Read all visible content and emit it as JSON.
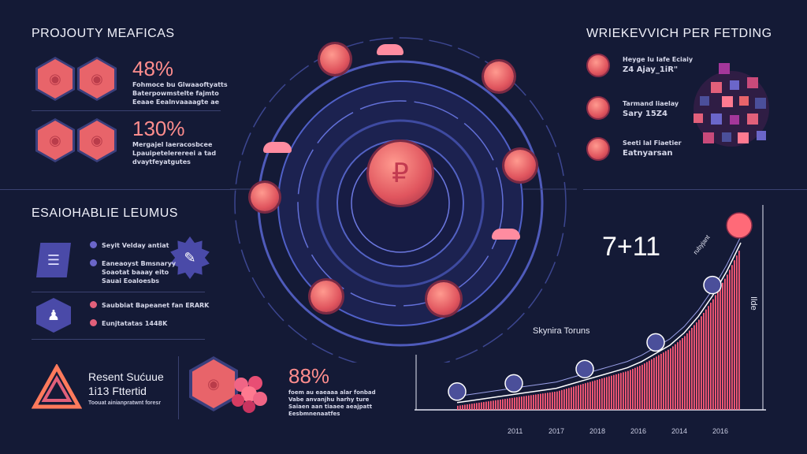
{
  "left_top": {
    "title": "PROJOUTY MEAFICAS",
    "stat1": {
      "value": "48%",
      "text": [
        "Fohmoce bu Glwaaoftyatts",
        "Baterpowmstelte fajmto",
        "Eeaae Eealnvaaaagte ae"
      ]
    },
    "stat2": {
      "value": "130%",
      "text": [
        "Mergajel laeracosbcee",
        "Lpauipetelerereei a tad",
        "dvaytfeyatgutes"
      ]
    }
  },
  "left_mid": {
    "title": "ESAIOHABLIE LEUMUS",
    "items": [
      "Seyit Velday antiat",
      "Eaneaoyst Bmsnaryy",
      "Soaotat baaay eito",
      "Sauai Eoaloesbs",
      "Saubbiat Bapeanet fan ERARK",
      "Eunjtatatas 1448K"
    ]
  },
  "left_bottom": {
    "title": "Resent Sućuue",
    "subtitle": "1i13 Fttertid",
    "text": "Toouat ainianpratwnt foresr"
  },
  "center_bottom": {
    "value": "88%",
    "text": [
      "foem au eaeaaa alar fonbad",
      "Vabe anvanjhu harhy ture",
      "Saiaen aan tiaaee aeajpatt",
      "Eesbmnenaatfes"
    ]
  },
  "right_top": {
    "title": "WRIEKEVVICH PER FETDING",
    "items": [
      {
        "l1": "Heyge Iu Iafe Eciaiy",
        "l2": "Z4 Ajay_1iR\""
      },
      {
        "l1": "Tarmand liaelay",
        "l2": "Sary 15Z4"
      },
      {
        "l1": "Seeti lal Fiaetier",
        "l2": "Eatnyarsan"
      }
    ]
  },
  "chart_data": {
    "type": "area",
    "title": "",
    "big_label": "7+11",
    "annotation": "Skynira Toruns",
    "curve_label": "rubyjant",
    "ylabel": "Ilde",
    "x_tick_labels": [
      "2011",
      "2017",
      "2018",
      "2016",
      "2014",
      "2016"
    ],
    "x": [
      0,
      1,
      2,
      3,
      4,
      5,
      6,
      7,
      8,
      9,
      10,
      11,
      12,
      13,
      14,
      15,
      16,
      17,
      18,
      19,
      20
    ],
    "values": [
      2,
      3,
      4,
      5,
      6,
      7,
      8,
      9,
      11,
      13,
      15,
      17,
      19,
      22,
      26,
      30,
      36,
      44,
      54,
      66,
      80
    ],
    "ylim": [
      0,
      100
    ],
    "marker_icons": [
      "chevron",
      "user",
      "figure",
      "figure",
      "figure",
      "coin"
    ],
    "colors": {
      "area": "#ff5a78",
      "line": "#ffffff",
      "marker": "#4b4f9a"
    }
  }
}
